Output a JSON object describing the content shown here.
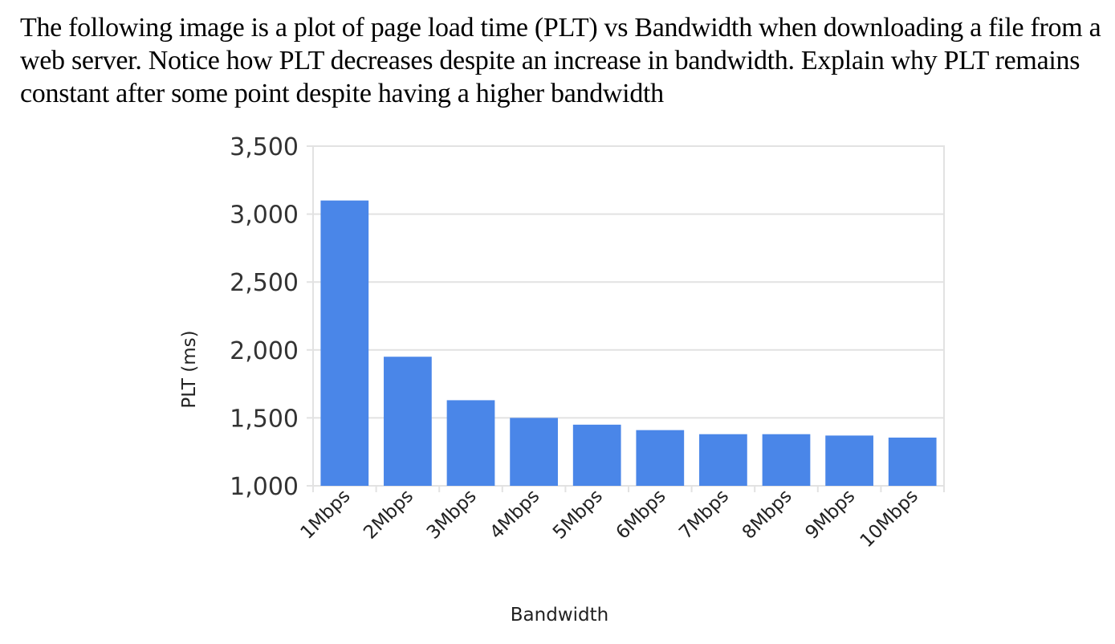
{
  "question": {
    "text": "The following image is a plot of page load time (PLT) vs Bandwidth when downloading a file from a web server. Notice how PLT decreases despite an increase in bandwidth. Explain why PLT remains constant after some point despite having a higher bandwidth"
  },
  "colors": {
    "bar": "#4a86e8",
    "grid": "#e2e2e2",
    "text": "#222222"
  },
  "chart_data": {
    "type": "bar",
    "title": "",
    "xlabel": "Bandwidth",
    "ylabel": "PLT (ms)",
    "categories": [
      "1Mbps",
      "2Mbps",
      "3Mbps",
      "4Mbps",
      "5Mbps",
      "6Mbps",
      "7Mbps",
      "8Mbps",
      "9Mbps",
      "10Mbps"
    ],
    "values": [
      3100,
      1950,
      1630,
      1500,
      1450,
      1410,
      1380,
      1380,
      1370,
      1355
    ],
    "ylim": [
      1000,
      3500
    ],
    "yticks": [
      1000,
      1500,
      2000,
      2500,
      3000,
      3500
    ],
    "ytick_labels": [
      "1,000",
      "1,500",
      "2,000",
      "2,500",
      "3,000",
      "3,500"
    ],
    "grid": true,
    "legend": null
  }
}
